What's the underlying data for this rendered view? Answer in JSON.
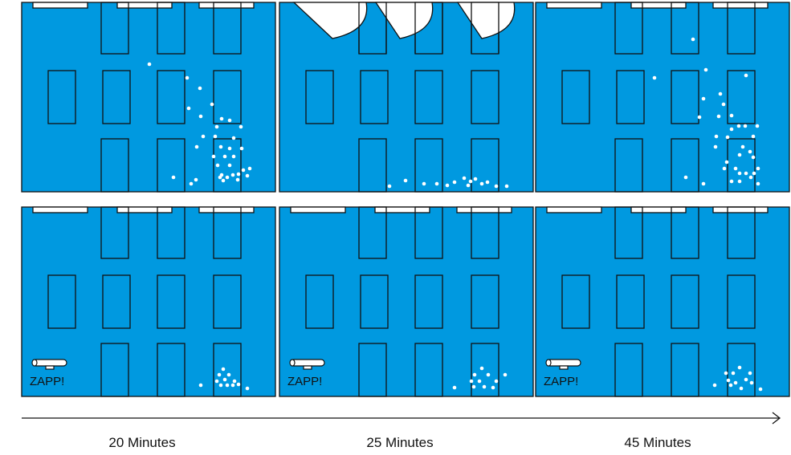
{
  "colors": {
    "room": "#0099e0",
    "line": "#111111",
    "particle": "#ffffff",
    "background": "#ffffff"
  },
  "timeline": {
    "labels": [
      "20 Minutes",
      "25 Minutes",
      "45 Minutes"
    ]
  },
  "rows": [
    {
      "panels": [
        {
          "device": "none",
          "particles": [
            [
              186,
              80
            ],
            [
              233,
              97
            ],
            [
              249,
              110
            ],
            [
              235,
              135
            ],
            [
              264,
              130
            ],
            [
              250,
              145
            ],
            [
              276,
              148
            ],
            [
              286,
              150
            ],
            [
              270,
              158
            ],
            [
              300,
              158
            ],
            [
              253,
              170
            ],
            [
              268,
              170
            ],
            [
              291,
              172
            ],
            [
              245,
              183
            ],
            [
              275,
              183
            ],
            [
              286,
              185
            ],
            [
              301,
              185
            ],
            [
              266,
              195
            ],
            [
              280,
              195
            ],
            [
              291,
              195
            ],
            [
              271,
              206
            ],
            [
              286,
              206
            ],
            [
              311,
              210
            ],
            [
              303,
              212
            ],
            [
              297,
              217
            ],
            [
              276,
              218
            ],
            [
              290,
              218
            ],
            [
              274,
              221
            ],
            [
              283,
              221
            ],
            [
              296,
              224
            ],
            [
              308,
              219
            ],
            [
              216,
              221
            ],
            [
              244,
              224
            ],
            [
              238,
              229
            ],
            [
              278,
              225
            ]
          ]
        },
        {
          "device": "fan",
          "particles": [
            [
              485,
              232
            ],
            [
              505,
              225
            ],
            [
              528,
              229
            ],
            [
              544,
              229
            ],
            [
              557,
              231
            ],
            [
              566,
              227
            ],
            [
              578,
              222
            ],
            [
              583,
              231
            ],
            [
              586,
              226
            ],
            [
              592,
              223
            ],
            [
              600,
              229
            ],
            [
              607,
              227
            ],
            [
              618,
              232
            ],
            [
              631,
              232
            ]
          ]
        },
        {
          "device": "none",
          "particles": [
            [
              863,
              49
            ],
            [
              879,
              87
            ],
            [
              929,
              94
            ],
            [
              815,
              97
            ],
            [
              876,
              123
            ],
            [
              897,
              117
            ],
            [
              901,
              130
            ],
            [
              871,
              146
            ],
            [
              895,
              145
            ],
            [
              911,
              144
            ],
            [
              920,
              157
            ],
            [
              928,
              157
            ],
            [
              943,
              157
            ],
            [
              911,
              161
            ],
            [
              892,
              170
            ],
            [
              906,
              171
            ],
            [
              938,
              170
            ],
            [
              891,
              183
            ],
            [
              925,
              183
            ],
            [
              921,
              193
            ],
            [
              934,
              189
            ],
            [
              905,
              202
            ],
            [
              938,
              196
            ],
            [
              902,
              210
            ],
            [
              916,
              210
            ],
            [
              944,
              210
            ],
            [
              921,
              216
            ],
            [
              929,
              216
            ],
            [
              939,
              216
            ],
            [
              911,
              226
            ],
            [
              921,
              226
            ],
            [
              935,
              221
            ],
            [
              944,
              229
            ],
            [
              854,
              221
            ],
            [
              876,
              229
            ]
          ]
        }
      ]
    },
    {
      "panels": [
        {
          "device": "zapper",
          "particles": [
            [
              278,
              460
            ],
            [
              273,
              467
            ],
            [
              285,
              467
            ],
            [
              270,
              475
            ],
            [
              280,
              473
            ],
            [
              292,
              475
            ],
            [
              275,
              480
            ],
            [
              283,
              480
            ],
            [
              290,
              480
            ],
            [
              297,
              479
            ],
            [
              308,
              484
            ],
            [
              250,
              480
            ]
          ]
        },
        {
          "device": "zapper",
          "particles": [
            [
              600,
              459
            ],
            [
              591,
              467
            ],
            [
              608,
              467
            ],
            [
              629,
              467
            ],
            [
              587,
              475
            ],
            [
              597,
              475
            ],
            [
              618,
              475
            ],
            [
              590,
              482
            ],
            [
              603,
              482
            ],
            [
              614,
              483
            ],
            [
              566,
              483
            ]
          ]
        },
        {
          "device": "zapper",
          "particles": [
            [
              921,
              458
            ],
            [
              904,
              465
            ],
            [
              913,
              465
            ],
            [
              934,
              465
            ],
            [
              907,
              474
            ],
            [
              929,
              473
            ],
            [
              916,
              477
            ],
            [
              936,
              477
            ],
            [
              890,
              480
            ],
            [
              910,
              480
            ],
            [
              923,
              484
            ],
            [
              947,
              485
            ]
          ]
        }
      ]
    }
  ],
  "zapper": {
    "label": "ZAPP!"
  }
}
